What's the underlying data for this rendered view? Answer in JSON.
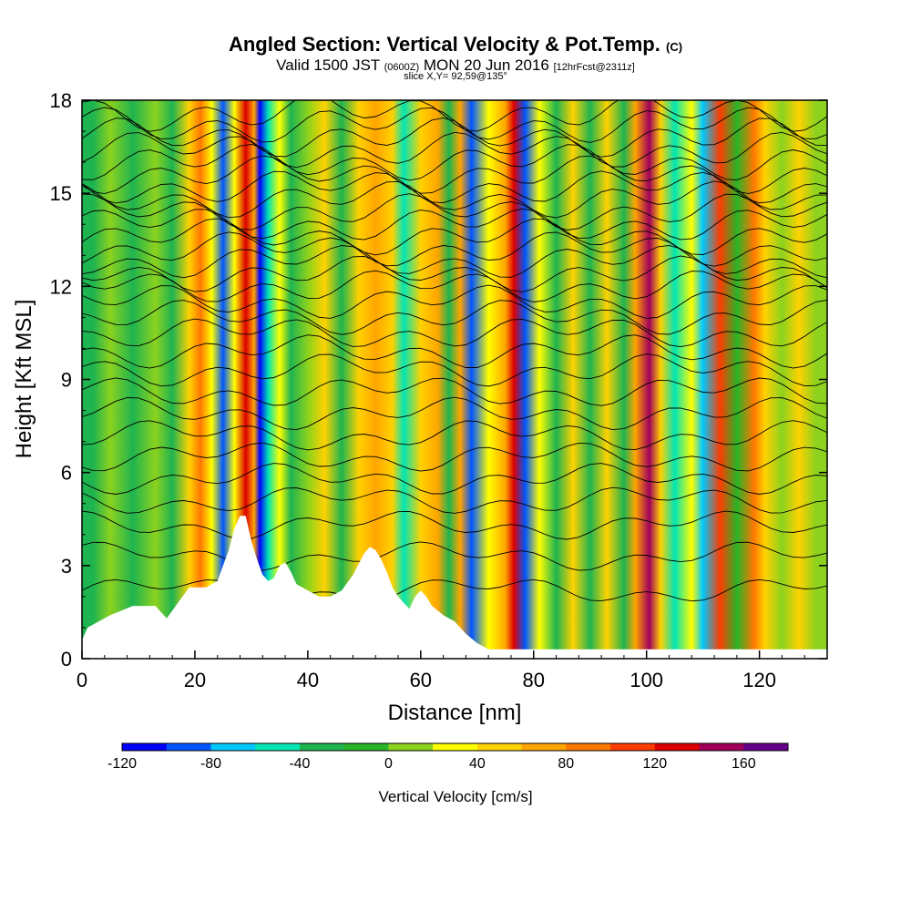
{
  "header": {
    "title_main": "Angled Section: Vertical Velocity & Pot.Temp.",
    "title_unit": "(C)",
    "valid_prefix": "Valid 1500 JST",
    "valid_utc": "(0600Z)",
    "valid_date": "MON 20 Jun 2016",
    "forecast": "[12hrFcst@2311z]",
    "slice": "slice X,Y= 92,59@135°"
  },
  "chart_data": {
    "type": "heatmap",
    "xlabel": "Distance [nm]",
    "ylabel": "Height [Kft MSL]",
    "xlim": [
      0,
      132
    ],
    "ylim": [
      0,
      18
    ],
    "x_ticks": [
      "0",
      "20",
      "40",
      "60",
      "80",
      "100",
      "120"
    ],
    "y_ticks": [
      "0",
      "3",
      "6",
      "9",
      "12",
      "15",
      "18"
    ],
    "colorbar": {
      "title": "Vertical Velocity [cm/s]",
      "min": -120,
      "max": 180,
      "step": 20,
      "tick_labels": [
        "-120",
        "-80",
        "-40",
        "0",
        "40",
        "80",
        "120",
        "160"
      ],
      "colors": [
        "#0000ff",
        "#0055ff",
        "#00c8ff",
        "#00e6b4",
        "#1eb450",
        "#28b428",
        "#8cd21e",
        "#ffff00",
        "#ffd200",
        "#ffa500",
        "#ff7800",
        "#ff3c00",
        "#dc0000",
        "#a0005a",
        "#64008c"
      ]
    },
    "terrain_kft": [
      [
        0,
        0.6
      ],
      [
        1,
        1.0
      ],
      [
        5,
        1.4
      ],
      [
        9,
        1.7
      ],
      [
        13,
        1.7
      ],
      [
        15,
        1.3
      ],
      [
        17,
        1.8
      ],
      [
        19,
        2.3
      ],
      [
        22,
        2.3
      ],
      [
        24,
        2.5
      ],
      [
        25,
        3.0
      ],
      [
        26,
        3.5
      ],
      [
        27,
        4.2
      ],
      [
        28,
        4.6
      ],
      [
        29,
        4.6
      ],
      [
        30,
        3.8
      ],
      [
        31,
        3.2
      ],
      [
        32,
        2.7
      ],
      [
        33,
        2.5
      ],
      [
        34,
        2.6
      ],
      [
        35,
        3.0
      ],
      [
        36,
        3.1
      ],
      [
        37,
        2.8
      ],
      [
        38,
        2.4
      ],
      [
        40,
        2.2
      ],
      [
        42,
        2.0
      ],
      [
        44,
        2.0
      ],
      [
        46,
        2.2
      ],
      [
        48,
        2.7
      ],
      [
        50,
        3.4
      ],
      [
        51,
        3.6
      ],
      [
        52,
        3.5
      ],
      [
        53,
        3.2
      ],
      [
        54,
        2.8
      ],
      [
        55,
        2.3
      ],
      [
        56,
        2.0
      ],
      [
        57,
        1.8
      ],
      [
        58,
        1.6
      ],
      [
        59,
        2.0
      ],
      [
        60,
        2.2
      ],
      [
        61,
        2.0
      ],
      [
        62,
        1.7
      ],
      [
        64,
        1.4
      ],
      [
        66,
        1.2
      ],
      [
        68,
        0.8
      ],
      [
        70,
        0.5
      ],
      [
        72,
        0.3
      ],
      [
        132,
        0.3
      ]
    ],
    "velocity_columns": [
      {
        "x": 2,
        "w_cms": -40
      },
      {
        "x": 5,
        "w_cms": 10
      },
      {
        "x": 9,
        "w_cms": -35
      },
      {
        "x": 13,
        "w_cms": 5
      },
      {
        "x": 16,
        "w_cms": -40
      },
      {
        "x": 19,
        "w_cms": 55
      },
      {
        "x": 21,
        "w_cms": 85
      },
      {
        "x": 23,
        "w_cms": 30
      },
      {
        "x": 25,
        "w_cms": -90
      },
      {
        "x": 27,
        "w_cms": 35
      },
      {
        "x": 29,
        "w_cms": 130
      },
      {
        "x": 30.5,
        "w_cms": 60
      },
      {
        "x": 31.5,
        "w_cms": -115
      },
      {
        "x": 33,
        "w_cms": -60
      },
      {
        "x": 35,
        "w_cms": 20
      },
      {
        "x": 37,
        "w_cms": -40
      },
      {
        "x": 40,
        "w_cms": 10
      },
      {
        "x": 43,
        "w_cms": 55
      },
      {
        "x": 46,
        "w_cms": -30
      },
      {
        "x": 49,
        "w_cms": 45
      },
      {
        "x": 52,
        "w_cms": 70
      },
      {
        "x": 55,
        "w_cms": 40
      },
      {
        "x": 57,
        "w_cms": -60
      },
      {
        "x": 60,
        "w_cms": 45
      },
      {
        "x": 63,
        "w_cms": 60
      },
      {
        "x": 65,
        "w_cms": -40
      },
      {
        "x": 67,
        "w_cms": 75
      },
      {
        "x": 69,
        "w_cms": -85
      },
      {
        "x": 72,
        "w_cms": 20
      },
      {
        "x": 75,
        "w_cms": 60
      },
      {
        "x": 76.5,
        "w_cms": 130
      },
      {
        "x": 78.5,
        "w_cms": -90
      },
      {
        "x": 81,
        "w_cms": 30
      },
      {
        "x": 84,
        "w_cms": -40
      },
      {
        "x": 87,
        "w_cms": 50
      },
      {
        "x": 90,
        "w_cms": -40
      },
      {
        "x": 93,
        "w_cms": 40
      },
      {
        "x": 96,
        "w_cms": -30
      },
      {
        "x": 98,
        "w_cms": 60
      },
      {
        "x": 100.5,
        "w_cms": 140
      },
      {
        "x": 102.5,
        "w_cms": 40
      },
      {
        "x": 105,
        "w_cms": -60
      },
      {
        "x": 108,
        "w_cms": 30
      },
      {
        "x": 110,
        "w_cms": -80
      },
      {
        "x": 113,
        "w_cms": 100
      },
      {
        "x": 116,
        "w_cms": -20
      },
      {
        "x": 119,
        "w_cms": 80
      },
      {
        "x": 121,
        "w_cms": 55
      },
      {
        "x": 124,
        "w_cms": 10
      },
      {
        "x": 127,
        "w_cms": 45
      },
      {
        "x": 130,
        "w_cms": 10
      }
    ],
    "isentropes_kft": [
      2.2,
      3.3,
      4.3,
      5.1,
      5.8,
      6.5,
      7.2,
      7.9,
      8.6,
      9.3,
      9.9,
      10.5,
      11.0,
      11.5,
      12.0,
      12.4,
      12.8,
      13.2,
      13.6,
      14.0,
      14.4,
      14.8,
      15.2,
      15.6,
      16.0,
      16.4,
      16.8,
      17.2,
      17.6
    ]
  }
}
